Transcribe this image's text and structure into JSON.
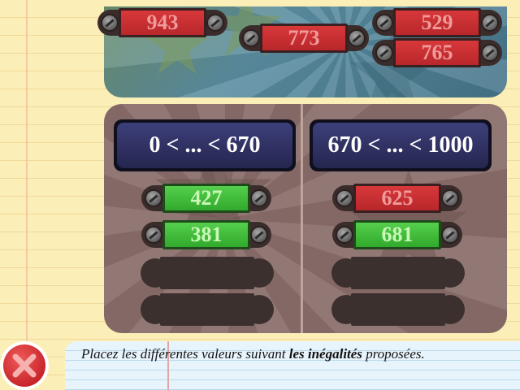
{
  "tray": {
    "numbers": [
      {
        "value": "943",
        "color": "red"
      },
      {
        "value": "773",
        "color": "red"
      },
      {
        "value": "529",
        "color": "red"
      },
      {
        "value": "765",
        "color": "red"
      }
    ]
  },
  "left": {
    "inequality": "0 < ... < 670",
    "placed": [
      {
        "value": "427",
        "color": "green"
      },
      {
        "value": "381",
        "color": "green"
      }
    ],
    "empty_slots": 2
  },
  "right": {
    "inequality": "670 < ... < 1000",
    "placed": [
      {
        "value": "625",
        "color": "red"
      },
      {
        "value": "681",
        "color": "green"
      }
    ],
    "empty_slots": 2
  },
  "instruction": {
    "before": "Placez les différentes valeurs suivant ",
    "bold": "les inégalités",
    "after": " proposées."
  },
  "icons": {
    "close": "close-x-icon",
    "screw": "screw-icon"
  },
  "colors": {
    "red_tag": "#c92f31",
    "green_tag": "#43bd3c",
    "close_button": "#d6353a"
  }
}
